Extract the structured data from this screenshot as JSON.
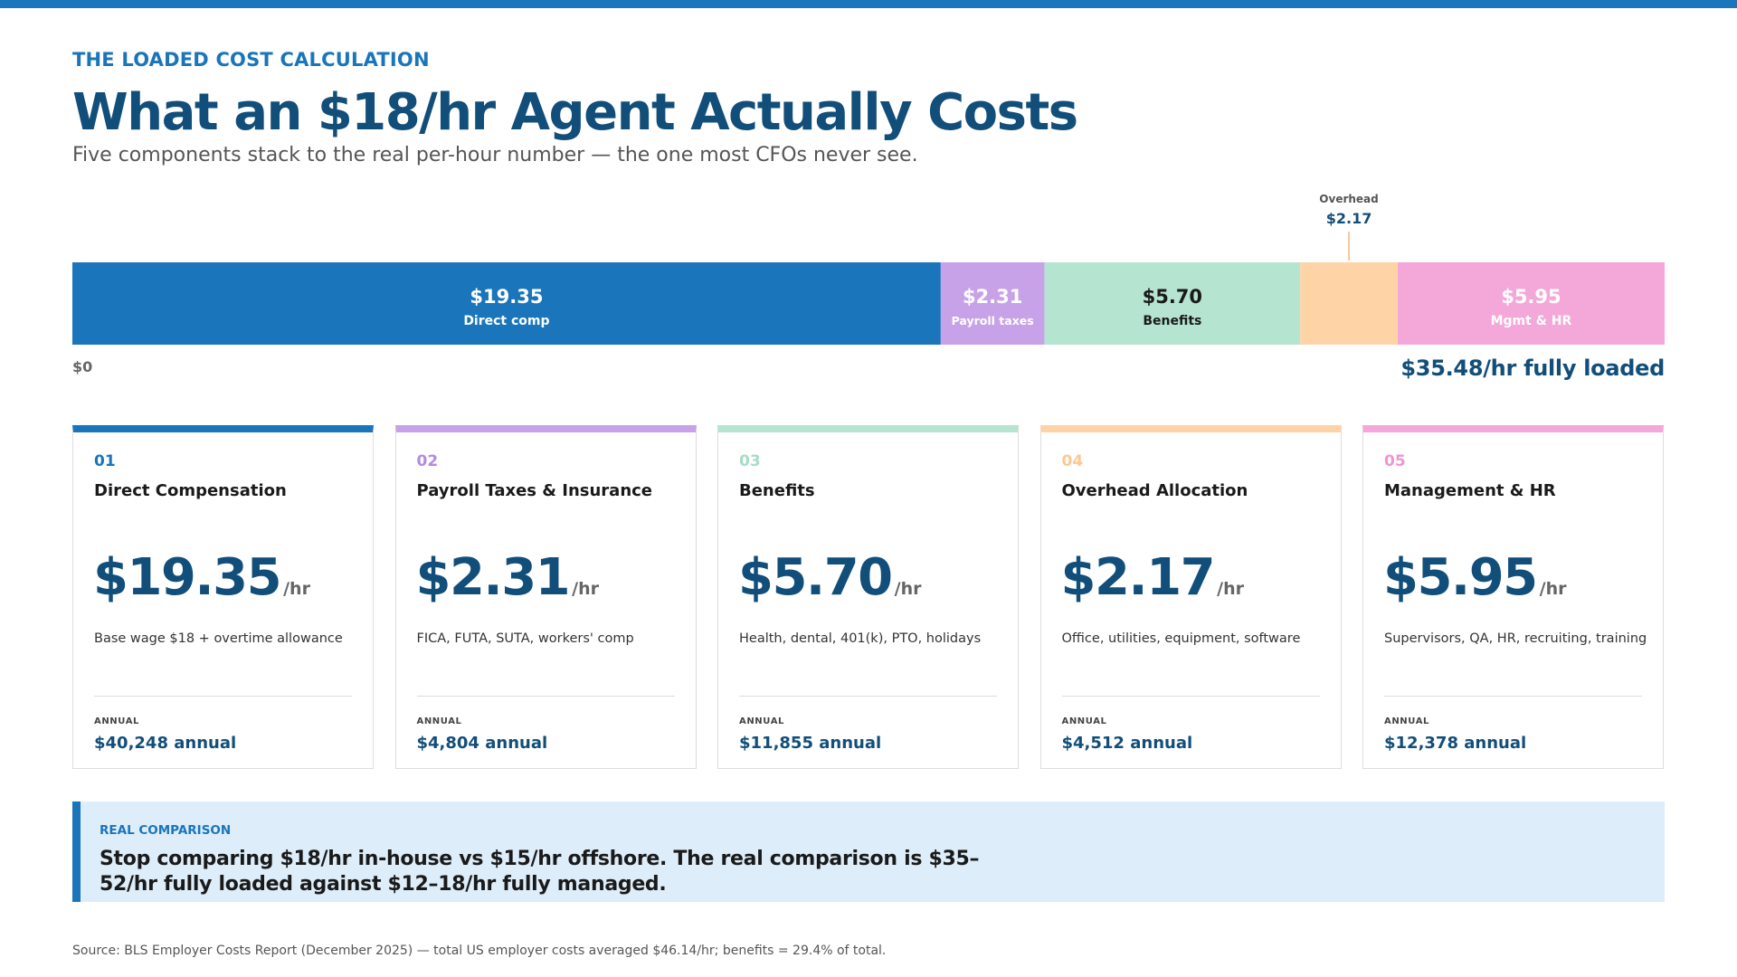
{
  "header": {
    "eyebrow": "THE LOADED COST CALCULATION",
    "title": "What an $18/hr Agent Actually Costs",
    "subtitle": "Five components stack to the real per-hour number — the one most CFOs never see."
  },
  "chart_data": {
    "type": "bar",
    "orientation": "horizontal-stacked",
    "xlim": [
      0,
      35.48
    ],
    "axis_start_label": "$0",
    "axis_end_label": "$35.48/hr fully loaded",
    "segments": [
      {
        "name": "Direct comp",
        "value": 19.35,
        "value_label": "$19.35",
        "color": "#1a75bb",
        "text_color": "#ffffff"
      },
      {
        "name": "Payroll taxes",
        "value": 2.31,
        "value_label": "$2.31",
        "color": "#c8a2e8",
        "text_color": "#ffffff"
      },
      {
        "name": "Benefits",
        "value": 5.7,
        "value_label": "$5.70",
        "color": "#b5e4d0",
        "text_color": "#1a1a1a"
      },
      {
        "name": "Overhead",
        "value": 2.17,
        "value_label": "$2.17",
        "color": "#fed4a6",
        "text_color": "#124e7a",
        "label_outside": true
      },
      {
        "name": "Mgmt & HR",
        "value": 5.95,
        "value_label": "$5.95",
        "color": "#f4a7d9",
        "text_color": "#ffffff"
      }
    ]
  },
  "cards": [
    {
      "num": "01",
      "title": "Direct Compensation",
      "value": "$19.35",
      "unit": "/hr",
      "desc": "Base wage $18 + overtime allowance",
      "annual_label": "ANNUAL",
      "annual": "$40,248 annual",
      "accent": "#1a75bb",
      "num_color": "#1a75bb"
    },
    {
      "num": "02",
      "title": "Payroll Taxes & Insurance",
      "value": "$2.31",
      "unit": "/hr",
      "desc": "FICA, FUTA, SUTA, workers' comp",
      "annual_label": "ANNUAL",
      "annual": "$4,804 annual",
      "accent": "#c8a2e8",
      "num_color": "#b48ae0"
    },
    {
      "num": "03",
      "title": "Benefits",
      "value": "$5.70",
      "unit": "/hr",
      "desc": "Health, dental, 401(k), PTO, holidays",
      "annual_label": "ANNUAL",
      "annual": "$11,855 annual",
      "accent": "#b5e4d0",
      "num_color": "#a6dcc6"
    },
    {
      "num": "04",
      "title": "Overhead Allocation",
      "value": "$2.17",
      "unit": "/hr",
      "desc": "Office, utilities, equipment, software",
      "annual_label": "ANNUAL",
      "annual": "$4,512 annual",
      "accent": "#fed4a6",
      "num_color": "#fdc891"
    },
    {
      "num": "05",
      "title": "Management & HR",
      "value": "$5.95",
      "unit": "/hr",
      "desc": "Supervisors, QA, HR, recruiting, training",
      "annual_label": "ANNUAL",
      "annual": "$12,378 annual",
      "accent": "#f4a7d9",
      "num_color": "#ef95cf"
    }
  ],
  "callout": {
    "label": "REAL COMPARISON",
    "text": "Stop comparing $18/hr in-house vs $15/hr offshore. The real comparison is $35–52/hr fully loaded against $12–18/hr fully managed."
  },
  "footer": {
    "source": "Source: BLS Employer Costs Report (December 2025) — total US employer costs averaged $46.14/hr; benefits = 29.4% of total."
  }
}
